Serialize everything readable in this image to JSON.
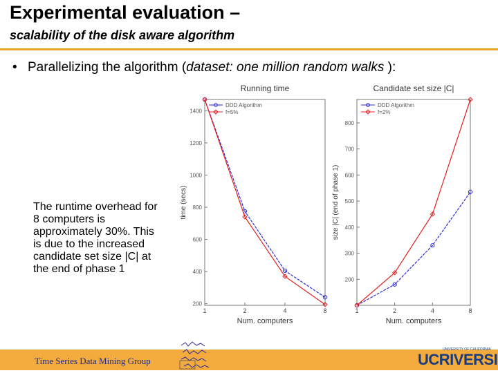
{
  "slide": {
    "title": "Experimental evaluation –",
    "subtitle": "scalability of the disk aware algorithm",
    "bullet_symbol": "•",
    "bullet_prefix": "Parallelizing the algorithm (",
    "bullet_italic": "dataset: one million random walks",
    "bullet_suffix": " ):",
    "note": "The runtime overhead for 8 computers is approximately 30%. This is due to the increased candidate set size |C| at the end of phase 1"
  },
  "footer": {
    "group_name": "Time Series Data Mining Group",
    "logo_uc": "UC",
    "logo_riverside": "RIVERSIDE",
    "logo_small": "UNIVERSITY OF CALIFORNIA"
  },
  "colors": {
    "accent": "#e8a422",
    "series_blue": "#2a2ad8",
    "series_red": "#e02020"
  },
  "chart_data": [
    {
      "type": "line",
      "title": "Running time",
      "xlabel": "Num. computers",
      "ylabel": "time (secs)",
      "categories": [
        "1",
        "2",
        "4",
        "8"
      ],
      "yticks": [
        200,
        400,
        600,
        800,
        1000,
        1200,
        1400
      ],
      "ylim": [
        190,
        1470
      ],
      "legend_position": "top-left",
      "series": [
        {
          "name": "DDD Algorithm",
          "values": [
            1470,
            775,
            405,
            240
          ]
        },
        {
          "name": "f=5%",
          "values": [
            1470,
            740,
            370,
            195
          ]
        }
      ]
    },
    {
      "type": "line",
      "title": "Candidate set size |C|",
      "xlabel": "Num. computers",
      "ylabel": "size |C| (end of phase 1)",
      "categories": [
        "1",
        "2",
        "4",
        "8"
      ],
      "yticks": [
        200,
        300,
        400,
        500,
        600,
        700,
        800
      ],
      "ylim": [
        100,
        890
      ],
      "legend_position": "top-left",
      "series": [
        {
          "name": "DDD Algorithm",
          "values": [
            100,
            180,
            330,
            535
          ]
        },
        {
          "name": "f=2%",
          "values": [
            100,
            225,
            450,
            890
          ]
        }
      ]
    }
  ]
}
